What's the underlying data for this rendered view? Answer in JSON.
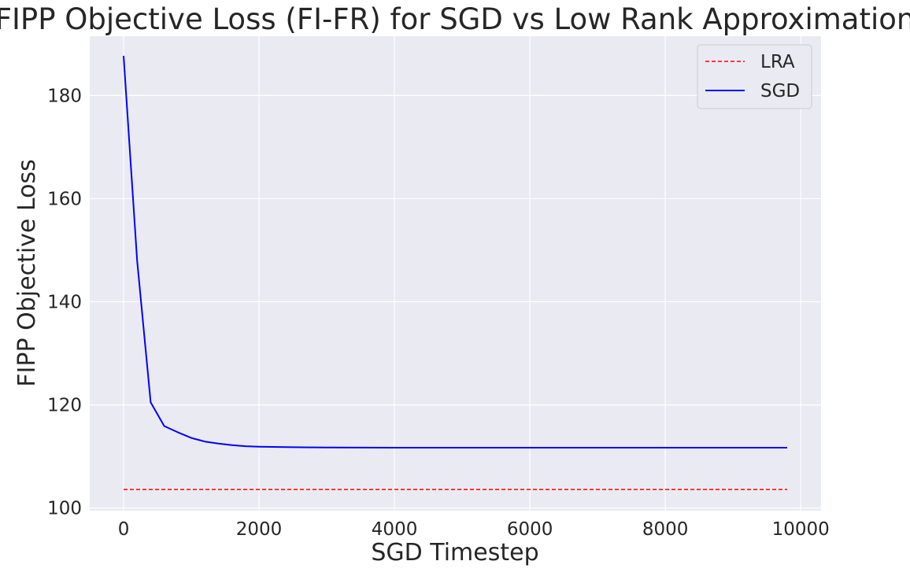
{
  "chart_data": {
    "type": "line",
    "title": "FIPP Objective Loss (FI-FR) for SGD vs Low Rank Approximation",
    "xlabel": "SGD Timestep",
    "ylabel": "FIPP Objective Loss",
    "xlim": [
      -500,
      10300
    ],
    "ylim": [
      99.5,
      191.5
    ],
    "x_ticks": [
      0,
      2000,
      4000,
      6000,
      8000,
      10000
    ],
    "y_ticks": [
      100,
      120,
      140,
      160,
      180
    ],
    "grid": true,
    "legend_position": "top-right",
    "background_color": "#eaeaf2",
    "grid_color": "#ffffff",
    "series": [
      {
        "name": "LRA",
        "style": "dashed",
        "color": "#ff0000",
        "x": [
          0,
          9800
        ],
        "y": [
          103.6,
          103.6
        ]
      },
      {
        "name": "SGD",
        "style": "solid",
        "color": "#0000ff",
        "x": [
          0,
          200,
          400,
          600,
          800,
          1000,
          1200,
          1400,
          1600,
          1800,
          2000,
          2500,
          3000,
          4000,
          5000,
          6000,
          7000,
          8000,
          9000,
          9800
        ],
        "y": [
          187.7,
          148.0,
          120.5,
          115.9,
          114.7,
          113.6,
          112.9,
          112.5,
          112.2,
          112.0,
          111.9,
          111.8,
          111.75,
          111.7,
          111.7,
          111.7,
          111.7,
          111.7,
          111.7,
          111.7
        ]
      }
    ]
  }
}
